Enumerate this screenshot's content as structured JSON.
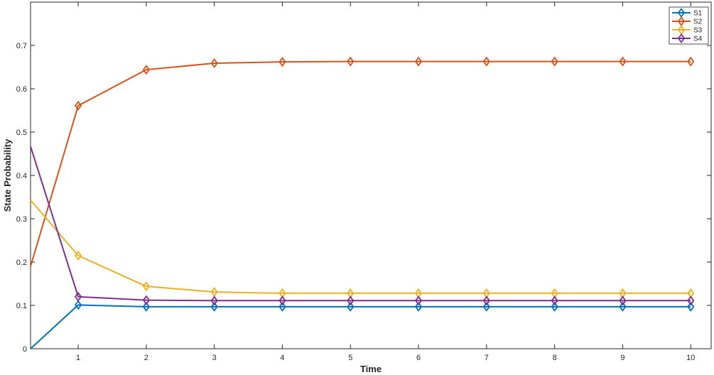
{
  "chart_data": {
    "type": "line",
    "xlabel": "Time",
    "ylabel": "State Probability",
    "xlim": [
      0.3,
      10.3
    ],
    "ylim": [
      0,
      0.8
    ],
    "xticks": [
      1,
      2,
      3,
      4,
      5,
      6,
      7,
      8,
      9,
      10
    ],
    "xtick_labels": [
      "1",
      "2",
      "3",
      "4",
      "5",
      "6",
      "7",
      "8",
      "9",
      "10"
    ],
    "yticks": [
      0,
      0.1,
      0.2,
      0.3,
      0.4,
      0.5,
      0.6,
      0.7
    ],
    "ytick_labels": [
      "0",
      "0.1",
      "0.2",
      "0.3",
      "0.4",
      "0.5",
      "0.6",
      "0.7"
    ],
    "grid": false,
    "legend": "top-right",
    "x": [
      0.3,
      1,
      2,
      3,
      4,
      5,
      6,
      7,
      8,
      9,
      10
    ],
    "series": [
      {
        "name": "S1",
        "color": "#0072BD",
        "marker": "diamond",
        "values": [
          0,
          0.101,
          0.097,
          0.097,
          0.097,
          0.097,
          0.097,
          0.097,
          0.097,
          0.097,
          0.097
        ]
      },
      {
        "name": "S2",
        "color": "#D95319",
        "marker": "diamond",
        "values": [
          0.19,
          0.561,
          0.644,
          0.659,
          0.662,
          0.663,
          0.663,
          0.663,
          0.663,
          0.663,
          0.663
        ]
      },
      {
        "name": "S3",
        "color": "#EDB120",
        "marker": "diamond",
        "values": [
          0.343,
          0.215,
          0.144,
          0.131,
          0.128,
          0.128,
          0.128,
          0.128,
          0.128,
          0.128,
          0.128
        ]
      },
      {
        "name": "S4",
        "color": "#7E2F8E",
        "marker": "diamond",
        "values": [
          0.467,
          0.12,
          0.112,
          0.111,
          0.111,
          0.111,
          0.111,
          0.111,
          0.111,
          0.111,
          0.111
        ]
      }
    ]
  }
}
